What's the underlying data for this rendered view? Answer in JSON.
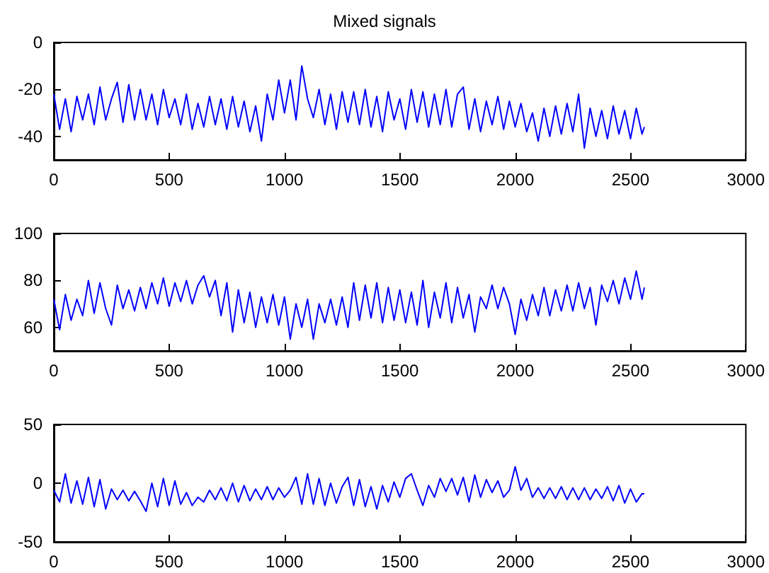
{
  "chart_data": [
    {
      "type": "line",
      "title": "Mixed signals",
      "color": "#0000ff",
      "marker": "none",
      "grid": false,
      "xlim": [
        0,
        3000
      ],
      "xticks": [
        0,
        500,
        1000,
        1500,
        2000,
        2500,
        3000
      ],
      "ylim": [
        -50,
        0
      ],
      "yticks": [
        -40,
        -20,
        0
      ],
      "x": [
        0,
        25,
        50,
        75,
        100,
        125,
        150,
        175,
        200,
        225,
        250,
        275,
        300,
        325,
        350,
        375,
        400,
        425,
        450,
        475,
        500,
        525,
        550,
        575,
        600,
        625,
        650,
        675,
        700,
        725,
        750,
        775,
        800,
        825,
        850,
        875,
        900,
        925,
        950,
        975,
        1000,
        1025,
        1050,
        1075,
        1100,
        1125,
        1150,
        1175,
        1200,
        1225,
        1250,
        1275,
        1300,
        1325,
        1350,
        1375,
        1400,
        1425,
        1450,
        1475,
        1500,
        1525,
        1550,
        1575,
        1600,
        1625,
        1650,
        1675,
        1700,
        1725,
        1750,
        1775,
        1800,
        1825,
        1850,
        1875,
        1900,
        1925,
        1950,
        1975,
        2000,
        2025,
        2050,
        2075,
        2100,
        2125,
        2150,
        2175,
        2200,
        2225,
        2250,
        2275,
        2300,
        2325,
        2350,
        2375,
        2400,
        2425,
        2450,
        2475,
        2500,
        2525,
        2550,
        2560
      ],
      "values": [
        -22,
        -37,
        -24,
        -38,
        -23,
        -33,
        -22,
        -35,
        -19,
        -33,
        -24,
        -17,
        -34,
        -18,
        -33,
        -20,
        -33,
        -22,
        -35,
        -20,
        -32,
        -24,
        -35,
        -22,
        -37,
        -26,
        -36,
        -23,
        -35,
        -24,
        -37,
        -23,
        -36,
        -25,
        -38,
        -27,
        -42,
        -22,
        -33,
        -16,
        -30,
        -16,
        -33,
        -10,
        -24,
        -32,
        -20,
        -35,
        -22,
        -37,
        -21,
        -34,
        -21,
        -35,
        -20,
        -36,
        -23,
        -38,
        -21,
        -33,
        -24,
        -37,
        -20,
        -34,
        -21,
        -36,
        -22,
        -35,
        -20,
        -36,
        -22,
        -19,
        -37,
        -24,
        -38,
        -25,
        -35,
        -23,
        -37,
        -25,
        -36,
        -26,
        -38,
        -30,
        -42,
        -28,
        -40,
        -27,
        -39,
        -26,
        -38,
        -22,
        -45,
        -28,
        -40,
        -29,
        -41,
        -27,
        -39,
        -29,
        -41,
        -28,
        -39,
        -36
      ]
    },
    {
      "type": "line",
      "color": "#0000ff",
      "marker": "none",
      "grid": false,
      "xlim": [
        0,
        3000
      ],
      "xticks": [
        0,
        500,
        1000,
        1500,
        2000,
        2500,
        3000
      ],
      "ylim": [
        50,
        100
      ],
      "yticks": [
        60,
        80,
        100
      ],
      "x": [
        0,
        25,
        50,
        75,
        100,
        125,
        150,
        175,
        200,
        225,
        250,
        275,
        300,
        325,
        350,
        375,
        400,
        425,
        450,
        475,
        500,
        525,
        550,
        575,
        600,
        625,
        650,
        675,
        700,
        725,
        750,
        775,
        800,
        825,
        850,
        875,
        900,
        925,
        950,
        975,
        1000,
        1025,
        1050,
        1075,
        1100,
        1125,
        1150,
        1175,
        1200,
        1225,
        1250,
        1275,
        1300,
        1325,
        1350,
        1375,
        1400,
        1425,
        1450,
        1475,
        1500,
        1525,
        1550,
        1575,
        1600,
        1625,
        1650,
        1675,
        1700,
        1725,
        1750,
        1775,
        1800,
        1825,
        1850,
        1875,
        1900,
        1925,
        1950,
        1975,
        2000,
        2025,
        2050,
        2075,
        2100,
        2125,
        2150,
        2175,
        2200,
        2225,
        2250,
        2275,
        2300,
        2325,
        2350,
        2375,
        2400,
        2425,
        2450,
        2475,
        2500,
        2525,
        2550,
        2560
      ],
      "values": [
        72,
        59,
        74,
        63,
        72,
        65,
        80,
        66,
        79,
        68,
        61,
        78,
        68,
        76,
        67,
        77,
        68,
        79,
        70,
        81,
        69,
        79,
        71,
        80,
        70,
        78,
        82,
        73,
        80,
        65,
        79,
        58,
        76,
        62,
        75,
        60,
        73,
        62,
        74,
        61,
        73,
        55,
        70,
        60,
        72,
        55,
        70,
        62,
        72,
        61,
        73,
        60,
        79,
        63,
        78,
        64,
        79,
        62,
        77,
        63,
        76,
        62,
        75,
        61,
        80,
        60,
        75,
        64,
        79,
        62,
        77,
        64,
        74,
        58,
        73,
        68,
        78,
        68,
        77,
        70,
        57,
        72,
        63,
        74,
        65,
        77,
        65,
        76,
        67,
        78,
        67,
        79,
        68,
        77,
        61,
        78,
        71,
        80,
        70,
        81,
        72,
        84,
        72,
        77
      ]
    },
    {
      "type": "line",
      "color": "#0000ff",
      "marker": "none",
      "grid": false,
      "xlim": [
        0,
        3000
      ],
      "xticks": [
        0,
        500,
        1000,
        1500,
        2000,
        2500,
        3000
      ],
      "ylim": [
        -50,
        50
      ],
      "yticks": [
        -50,
        0,
        50
      ],
      "x": [
        0,
        25,
        50,
        75,
        100,
        125,
        150,
        175,
        200,
        225,
        250,
        275,
        300,
        325,
        350,
        375,
        400,
        425,
        450,
        475,
        500,
        525,
        550,
        575,
        600,
        625,
        650,
        675,
        700,
        725,
        750,
        775,
        800,
        825,
        850,
        875,
        900,
        925,
        950,
        975,
        1000,
        1025,
        1050,
        1075,
        1100,
        1125,
        1150,
        1175,
        1200,
        1225,
        1250,
        1275,
        1300,
        1325,
        1350,
        1375,
        1400,
        1425,
        1450,
        1475,
        1500,
        1525,
        1550,
        1575,
        1600,
        1625,
        1650,
        1675,
        1700,
        1725,
        1750,
        1775,
        1800,
        1825,
        1850,
        1875,
        1900,
        1925,
        1950,
        1975,
        2000,
        2025,
        2050,
        2075,
        2100,
        2125,
        2150,
        2175,
        2200,
        2225,
        2250,
        2275,
        2300,
        2325,
        2350,
        2375,
        2400,
        2425,
        2450,
        2475,
        2500,
        2525,
        2550,
        2560
      ],
      "values": [
        -6,
        -16,
        8,
        -17,
        2,
        -18,
        5,
        -20,
        3,
        -22,
        -5,
        -14,
        -6,
        -15,
        -7,
        -15,
        -24,
        0,
        -20,
        4,
        -19,
        2,
        -18,
        -8,
        -19,
        -12,
        -16,
        -6,
        -14,
        -4,
        -15,
        0,
        -16,
        -2,
        -15,
        -5,
        -14,
        -3,
        -14,
        -4,
        -12,
        -6,
        5,
        -18,
        8,
        -18,
        4,
        -19,
        0,
        -17,
        -3,
        5,
        -19,
        3,
        -20,
        -3,
        -22,
        -2,
        -16,
        1,
        -12,
        4,
        8,
        -6,
        -19,
        -2,
        -12,
        4,
        -7,
        4,
        -10,
        5,
        -16,
        7,
        -12,
        3,
        -8,
        2,
        -12,
        -6,
        14,
        -6,
        4,
        -12,
        -4,
        -13,
        -4,
        -13,
        -3,
        -14,
        -4,
        -14,
        -4,
        -14,
        -5,
        -13,
        -3,
        -15,
        -2,
        -17,
        -5,
        -16,
        -9,
        -9
      ]
    }
  ]
}
